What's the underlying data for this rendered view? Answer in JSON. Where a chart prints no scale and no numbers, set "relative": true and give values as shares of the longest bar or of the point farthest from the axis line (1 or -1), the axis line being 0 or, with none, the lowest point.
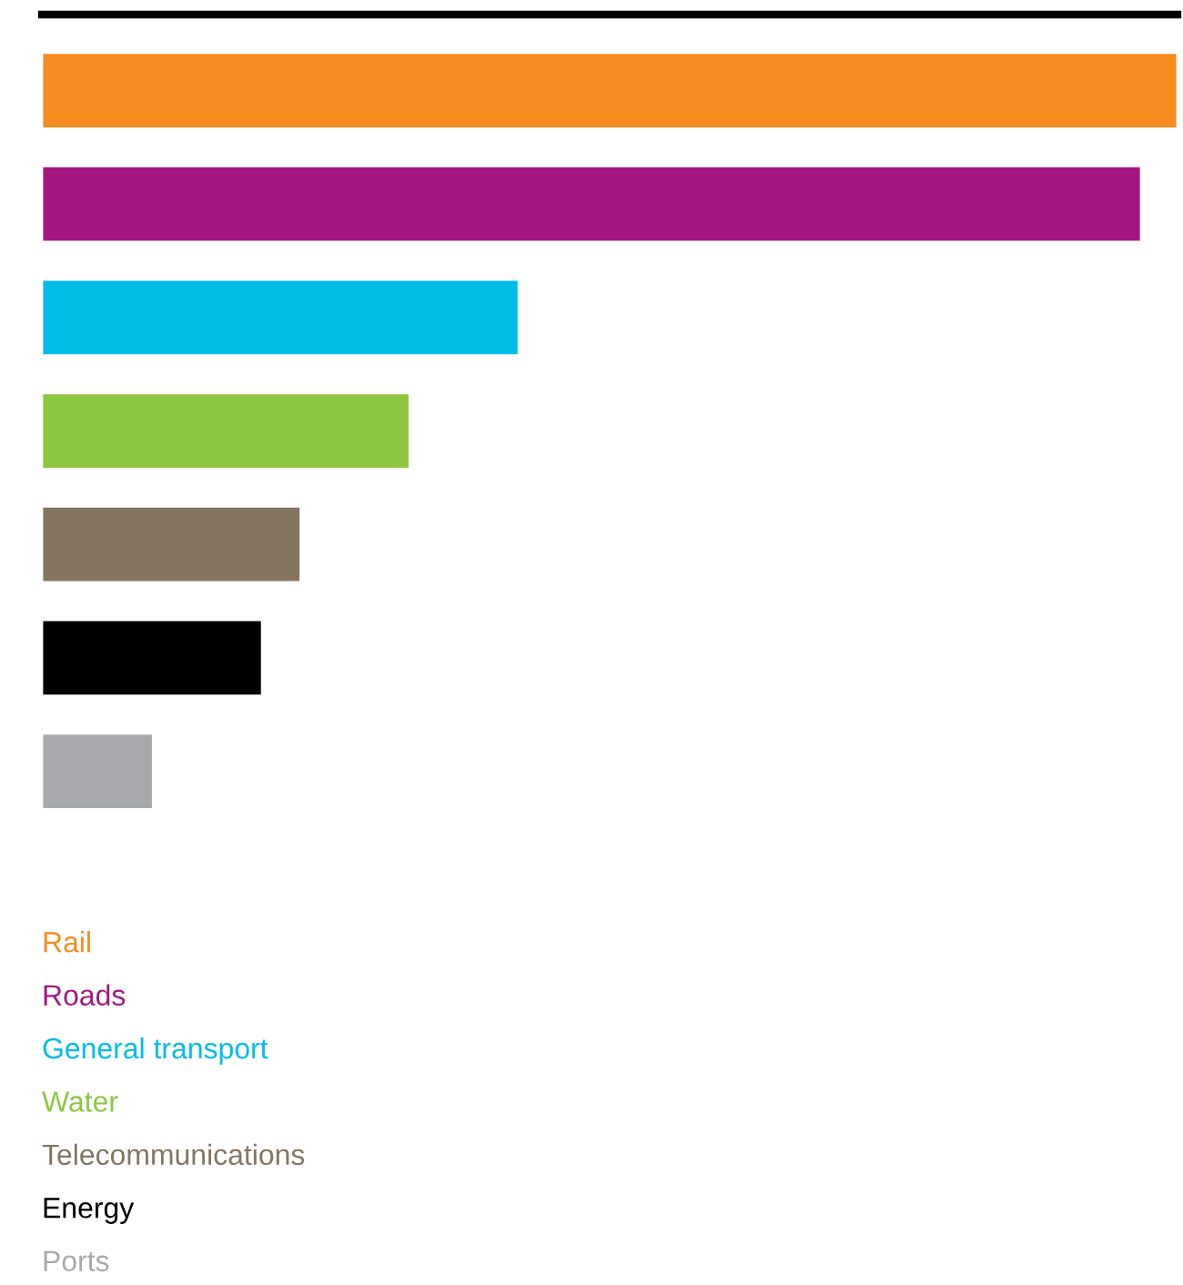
{
  "chart_data": {
    "type": "bar",
    "orientation": "horizontal",
    "relative": true,
    "stacked": true,
    "categories": [
      null,
      null,
      null,
      null,
      null,
      null,
      null
    ],
    "series": [
      {
        "name": "Rail",
        "color": "#f68b1f",
        "values": [
          1,
          null,
          null,
          null,
          null,
          null,
          null
        ]
      },
      {
        "name": "Roads",
        "color": "#a3177f",
        "values": [
          null,
          0.968,
          null,
          null,
          null,
          null,
          null
        ]
      },
      {
        "name": "General transport",
        "color": "#00bce7",
        "values": [
          null,
          null,
          0.42,
          null,
          null,
          null,
          null
        ]
      },
      {
        "name": "Water",
        "color": "#8dc63f",
        "values": [
          null,
          null,
          null,
          0.324,
          null,
          null,
          null
        ]
      },
      {
        "name": "Telecommunications",
        "color": "#847561",
        "values": [
          null,
          null,
          null,
          null,
          0.228,
          null,
          null
        ]
      },
      {
        "name": "Energy",
        "color": "#000000",
        "values": [
          null,
          null,
          null,
          null,
          null,
          0.194,
          null
        ]
      },
      {
        "name": "Ports",
        "color": "#a7a8ac",
        "values": [
          null,
          null,
          null,
          null,
          null,
          null,
          0.098
        ]
      }
    ]
  }
}
